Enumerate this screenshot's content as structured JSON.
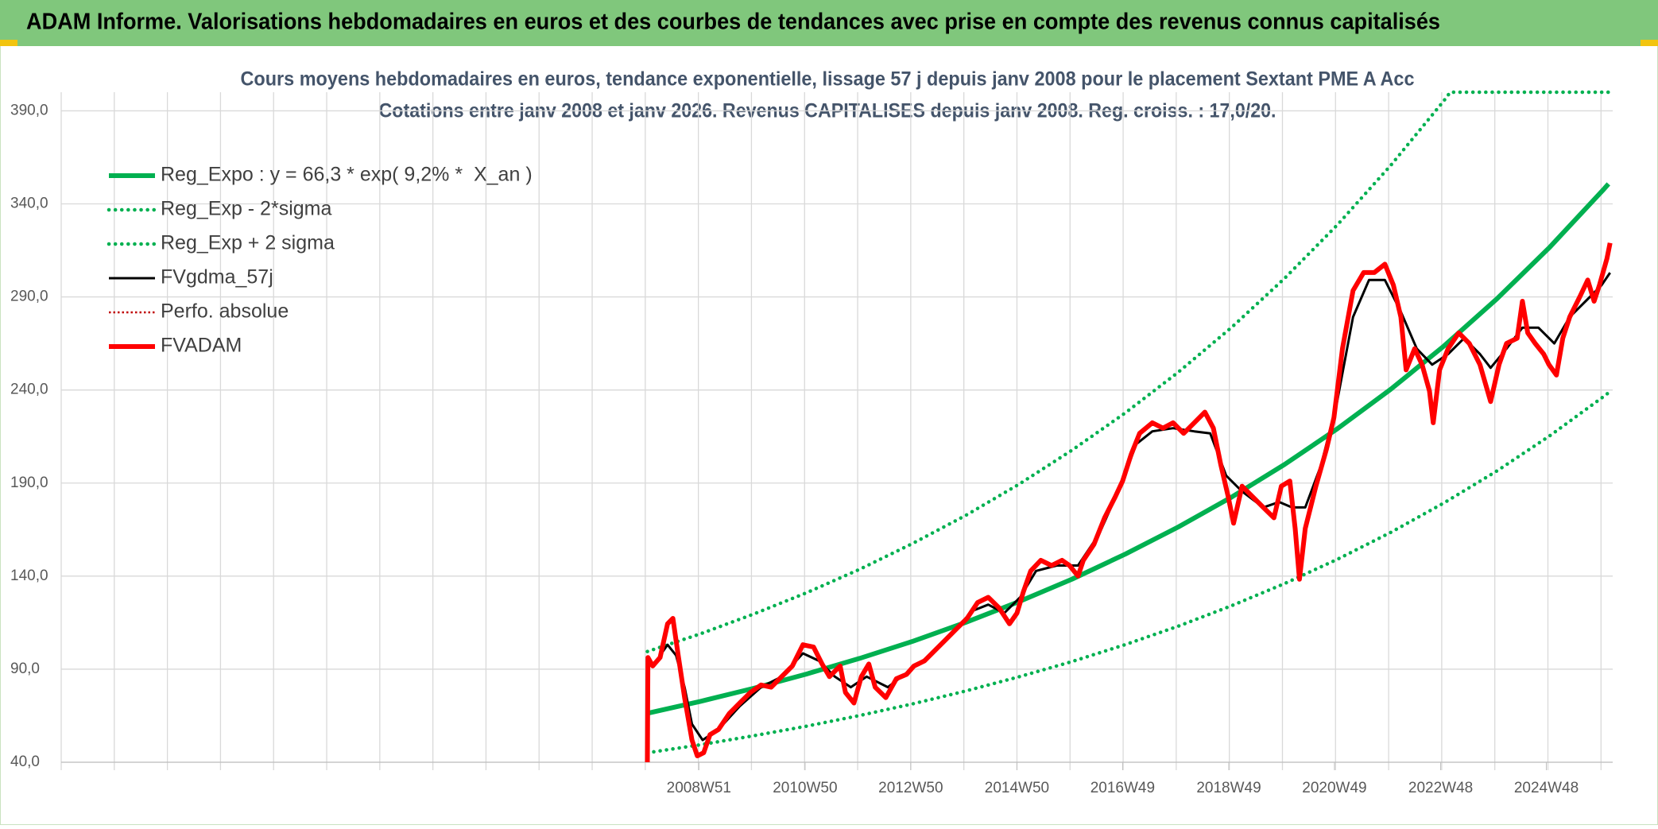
{
  "chart_data": {
    "type": "line",
    "header": "ADAM Informe. Valorisations hebdomadaires en euros et des courbes de tendances avec prise en compte des revenus connus capitalisés",
    "title": "Cours moyens hebdomadaires en euros, tendance exponentielle, lissage 57 j depuis janv 2008 pour le placement Sextant PME A Acc",
    "subtitle": "Cotations entre janv 2008 et janv 2026. Revenus CAPITALISES depuis janv 2008. Reg. croiss. : 17,0/20.",
    "xlim": [
      1996.96,
      2026.18
    ],
    "xticks": [
      {
        "value": 2008.97,
        "label": "2008W51"
      },
      {
        "value": 2010.97,
        "label": "2010W50"
      },
      {
        "value": 2012.96,
        "label": "2012W50"
      },
      {
        "value": 2014.96,
        "label": "2014W50"
      },
      {
        "value": 2016.95,
        "label": "2016W49"
      },
      {
        "value": 2018.95,
        "label": "2018W49"
      },
      {
        "value": 2020.94,
        "label": "2020W49"
      },
      {
        "value": 2022.94,
        "label": "2022W48"
      },
      {
        "value": 2024.93,
        "label": "2024W48"
      }
    ],
    "xgrid": [
      1996.96,
      1997.96,
      1998.96,
      1999.96,
      2000.96,
      2001.96,
      2002.96,
      2003.96,
      2004.96,
      2005.96,
      2006.96,
      2007.96,
      2008.96,
      2009.96,
      2010.96,
      2011.96,
      2012.96,
      2013.96,
      2014.96,
      2015.96,
      2016.96,
      2017.96,
      2018.96,
      2019.96,
      2020.96,
      2021.96,
      2022.96,
      2023.96,
      2024.96,
      2025.96
    ],
    "ylim": [
      40,
      400
    ],
    "yticks": [
      {
        "value": 40,
        "label": "40,0"
      },
      {
        "value": 90,
        "label": "90,0"
      },
      {
        "value": 140,
        "label": "140,0"
      },
      {
        "value": 190,
        "label": "190,0"
      },
      {
        "value": 240,
        "label": "240,0"
      },
      {
        "value": 290,
        "label": "290,0"
      },
      {
        "value": 340,
        "label": "340,0"
      },
      {
        "value": 390,
        "label": "390,0"
      }
    ],
    "grid": true,
    "legend": "upper left",
    "series": [
      {
        "name": "Reg_Expo : y = 66,3 * exp( 9,2% *  X_an )",
        "color": "#00b050",
        "line_style": "thick",
        "x": [
          2008.0,
          2009.0,
          2010.0,
          2011.0,
          2012.0,
          2013.0,
          2014.0,
          2015.0,
          2016.0,
          2017.0,
          2018.0,
          2019.0,
          2020.0,
          2021.0,
          2022.0,
          2023.0,
          2024.0,
          2025.0,
          2026.0,
          2026.1
        ],
        "values": [
          66.3,
          72.7,
          79.7,
          87.4,
          95.8,
          105.0,
          115.2,
          126.3,
          138.4,
          151.8,
          166.4,
          182.4,
          200.0,
          219.3,
          240.4,
          263.6,
          289.0,
          316.9,
          347.5,
          350.7
        ]
      },
      {
        "name": "Reg_Exp - 2*sigma",
        "color": "#00b050",
        "line_style": "dotted",
        "x": [
          2008.0,
          2009.0,
          2010.0,
          2011.0,
          2012.0,
          2013.0,
          2014.0,
          2015.0,
          2016.0,
          2017.0,
          2018.0,
          2019.0,
          2020.0,
          2021.0,
          2022.0,
          2023.0,
          2024.0,
          2025.0,
          2026.0,
          2026.1
        ],
        "values": [
          45.1,
          49.4,
          54.2,
          59.4,
          65.1,
          71.4,
          78.3,
          85.9,
          94.1,
          103.2,
          113.1,
          124.1,
          136.0,
          149.1,
          163.5,
          179.3,
          196.5,
          215.5,
          236.3,
          238.5
        ]
      },
      {
        "name": "Reg_Exp + 2 sigma",
        "color": "#00b050",
        "line_style": "dotted",
        "x": [
          2008.0,
          2009.0,
          2010.0,
          2011.0,
          2012.0,
          2013.0,
          2014.0,
          2015.0,
          2016.0,
          2017.0,
          2018.0,
          2019.0,
          2020.0,
          2021.0,
          2022.0,
          2023.0,
          2023.12,
          2024.0,
          2025.0,
          2026.0,
          2026.1
        ],
        "values": [
          99.5,
          109.0,
          119.6,
          131.1,
          143.7,
          157.6,
          172.7,
          189.4,
          207.7,
          227.7,
          249.6,
          273.6,
          300.0,
          328.9,
          360.7,
          395.4,
          400,
          400,
          400,
          400,
          400
        ]
      },
      {
        "name": "FVgdma_57j",
        "color": "#000000",
        "line_style": "thin",
        "x": [
          2008.24,
          2008.38,
          2008.54,
          2008.7,
          2008.84,
          2009.04,
          2009.34,
          2009.74,
          2010.14,
          2010.53,
          2010.93,
          2011.23,
          2011.53,
          2011.83,
          2012.13,
          2012.53,
          2012.92,
          2013.32,
          2013.72,
          2014.12,
          2014.42,
          2014.72,
          2015.02,
          2015.32,
          2015.71,
          2016.11,
          2016.51,
          2016.91,
          2017.21,
          2017.51,
          2017.9,
          2018.3,
          2018.6,
          2018.9,
          2019.2,
          2019.6,
          2019.9,
          2020.14,
          2020.39,
          2020.69,
          2020.99,
          2021.29,
          2021.59,
          2021.89,
          2022.19,
          2022.49,
          2022.78,
          2023.08,
          2023.38,
          2023.68,
          2023.88,
          2024.18,
          2024.48,
          2024.78,
          2025.08,
          2025.37,
          2025.67,
          2025.97,
          2026.13
        ],
        "values": [
          97.4,
          103.1,
          97.4,
          80.3,
          60.5,
          51.9,
          57.6,
          70.1,
          80.3,
          86.0,
          98.5,
          94.5,
          86.0,
          80.3,
          86.0,
          80.3,
          88.9,
          97.4,
          108.8,
          121.3,
          124.7,
          120.1,
          128.6,
          142.8,
          145.7,
          145.7,
          162.7,
          188.3,
          211.0,
          217.8,
          219.5,
          217.8,
          216.7,
          194.0,
          185.5,
          176.9,
          179.8,
          176.9,
          176.9,
          199.7,
          233.8,
          279.2,
          299.1,
          299.1,
          282.0,
          262.2,
          253.6,
          259.3,
          267.8,
          259.3,
          251.9,
          262.2,
          273.5,
          273.5,
          265.0,
          279.2,
          287.7,
          296.3,
          303.0
        ]
      },
      {
        "name": "Perfo. absolue",
        "color": "#c00000",
        "line_style": "dotted-thin",
        "x": [],
        "values": []
      },
      {
        "name": "FVADAM",
        "color": "#ff0000",
        "line_style": "thick",
        "x": [
          2008.0,
          2008.01,
          2008.1,
          2008.24,
          2008.38,
          2008.48,
          2008.58,
          2008.7,
          2008.84,
          2008.94,
          2009.06,
          2009.18,
          2009.34,
          2009.54,
          2009.74,
          2009.94,
          2010.14,
          2010.33,
          2010.53,
          2010.73,
          2010.93,
          2011.13,
          2011.29,
          2011.43,
          2011.63,
          2011.73,
          2011.89,
          2012.03,
          2012.17,
          2012.29,
          2012.49,
          2012.69,
          2012.88,
          2013.02,
          2013.22,
          2013.42,
          2013.62,
          2013.82,
          2014.02,
          2014.22,
          2014.42,
          2014.62,
          2014.82,
          2014.96,
          2015.08,
          2015.22,
          2015.41,
          2015.61,
          2015.81,
          2015.95,
          2016.11,
          2016.21,
          2016.41,
          2016.61,
          2016.81,
          2016.95,
          2017.11,
          2017.27,
          2017.51,
          2017.71,
          2017.9,
          2018.1,
          2018.3,
          2018.5,
          2018.66,
          2018.8,
          2018.94,
          2019.04,
          2019.2,
          2019.4,
          2019.6,
          2019.8,
          2019.94,
          2020.1,
          2020.2,
          2020.28,
          2020.39,
          2020.59,
          2020.79,
          2020.93,
          2021.09,
          2021.29,
          2021.49,
          2021.69,
          2021.89,
          2022.05,
          2022.19,
          2022.29,
          2022.45,
          2022.59,
          2022.73,
          2022.8,
          2022.92,
          2023.08,
          2023.28,
          2023.48,
          2023.68,
          2023.88,
          2024.04,
          2024.18,
          2024.38,
          2024.48,
          2024.58,
          2024.72,
          2024.88,
          2024.98,
          2025.12,
          2025.24,
          2025.37,
          2025.57,
          2025.71,
          2025.83,
          2025.93,
          2026.07,
          2026.13
        ],
        "values": [
          40,
          96.3,
          91.7,
          96.3,
          114.4,
          117.3,
          97.4,
          74.7,
          51.9,
          43.4,
          45.1,
          54.8,
          57.6,
          66.1,
          71.8,
          77.5,
          81.5,
          80.3,
          86.0,
          91.7,
          103.1,
          101.9,
          92.8,
          86.0,
          91.7,
          77.5,
          71.8,
          86.0,
          92.8,
          80.3,
          74.7,
          84.9,
          87.2,
          91.7,
          94.5,
          100.2,
          105.9,
          111.6,
          117.3,
          125.8,
          128.6,
          123.0,
          114.4,
          120.1,
          131.5,
          142.8,
          148.5,
          145.7,
          148.5,
          145.7,
          140.0,
          148.5,
          157.0,
          171.3,
          182.6,
          191.1,
          205.3,
          216.7,
          222.4,
          219.5,
          222.4,
          216.7,
          222.4,
          228.1,
          219.5,
          199.7,
          182.6,
          168.4,
          188.3,
          182.6,
          176.9,
          171.3,
          188.3,
          191.1,
          165.6,
          138.3,
          165.6,
          188.3,
          208.2,
          225.2,
          262.2,
          293.4,
          303.1,
          303.1,
          307.6,
          296.3,
          279.2,
          250.8,
          262.2,
          253.6,
          239.4,
          222.4,
          250.8,
          262.2,
          270.7,
          265.0,
          253.6,
          233.8,
          253.6,
          265.0,
          267.8,
          287.7,
          270.7,
          265.0,
          259.3,
          253.6,
          248.0,
          267.8,
          279.2,
          290.6,
          299.1,
          287.7,
          296.3,
          310.5,
          319.0
        ]
      }
    ]
  }
}
